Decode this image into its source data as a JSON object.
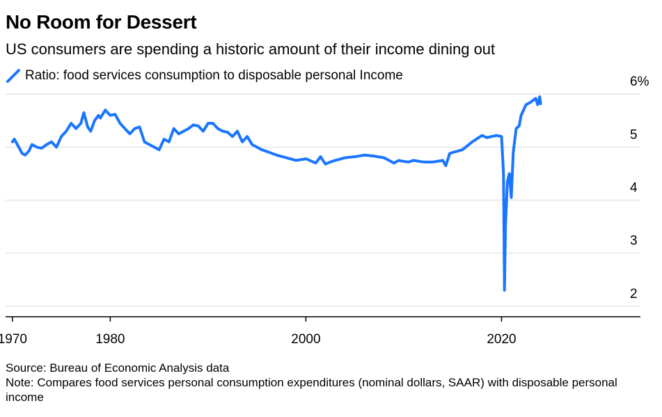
{
  "header": {
    "title": "No Room for Dessert",
    "subtitle": "US consumers are spending a historic amount of their income dining out"
  },
  "footer": {
    "source": "Source: Bureau of Economic Analysis data",
    "note": "Note: Compares food services personal consumption expenditures (nominal dollars, SAAR) with disposable personal income"
  },
  "chart_data": {
    "type": "line",
    "title": "No Room for Dessert",
    "subtitle": "US consumers are spending a historic amount of their income dining out",
    "xlabel": "",
    "ylabel": "",
    "xlim": [
      1969.3,
      2034.2
    ],
    "ylim": [
      1.8,
      6.2
    ],
    "x_ticks": [
      1970,
      1980,
      2000,
      2020
    ],
    "x_tick_labels": [
      "1970",
      "1980",
      "2000",
      "2020"
    ],
    "y_ticks": [
      2,
      3,
      4,
      5,
      6
    ],
    "y_tick_labels": [
      "2",
      "3",
      "4",
      "5",
      "6%"
    ],
    "grid": true,
    "legend_position": "top-left",
    "series": [
      {
        "name": "Ratio: food services consumption to disposable personal Income",
        "color": "#1a75ff",
        "x": [
          1970.0,
          1970.2,
          1970.5,
          1971.0,
          1971.3,
          1971.7,
          1972.0,
          1972.5,
          1973.0,
          1973.5,
          1974.0,
          1974.5,
          1975.0,
          1975.5,
          1976.0,
          1976.5,
          1977.0,
          1977.3,
          1977.7,
          1978.0,
          1978.4,
          1978.8,
          1979.0,
          1979.5,
          1980.0,
          1980.5,
          1981.0,
          1981.5,
          1982.0,
          1982.5,
          1983.0,
          1983.5,
          1984.0,
          1984.5,
          1985.0,
          1985.5,
          1986.0,
          1986.5,
          1987.0,
          1987.5,
          1988.0,
          1988.5,
          1989.0,
          1989.5,
          1990.0,
          1990.5,
          1991.0,
          1991.5,
          1992.0,
          1992.5,
          1993.0,
          1993.5,
          1994.0,
          1994.5,
          1995.0,
          1995.5,
          1996.0,
          1997.0,
          1998.0,
          1999.0,
          2000.0,
          2001.0,
          2001.5,
          2002.0,
          2002.5,
          2003.0,
          2004.0,
          2005.0,
          2006.0,
          2007.0,
          2008.0,
          2009.0,
          2009.5,
          2010.0,
          2010.5,
          2011.0,
          2012.0,
          2013.0,
          2014.0,
          2014.3,
          2014.7,
          2015.0,
          2016.0,
          2017.0,
          2018.0,
          2018.5,
          2019.0,
          2019.5,
          2020.0,
          2020.2,
          2020.3,
          2020.4,
          2020.6,
          2020.8,
          2021.0,
          2021.2,
          2021.5,
          2021.8,
          2022.0,
          2022.5,
          2023.0,
          2023.5,
          2023.7,
          2023.9,
          2024.0
        ],
        "values": [
          5.1,
          5.15,
          5.05,
          4.88,
          4.85,
          4.93,
          5.05,
          5.0,
          4.98,
          5.05,
          5.1,
          5.0,
          5.2,
          5.3,
          5.45,
          5.35,
          5.45,
          5.65,
          5.38,
          5.3,
          5.5,
          5.6,
          5.55,
          5.7,
          5.6,
          5.62,
          5.45,
          5.35,
          5.25,
          5.35,
          5.38,
          5.1,
          5.05,
          5.0,
          4.95,
          5.15,
          5.1,
          5.35,
          5.25,
          5.3,
          5.35,
          5.42,
          5.4,
          5.3,
          5.45,
          5.45,
          5.35,
          5.3,
          5.28,
          5.2,
          5.3,
          5.1,
          5.2,
          5.05,
          5.0,
          4.95,
          4.92,
          4.85,
          4.8,
          4.75,
          4.78,
          4.7,
          4.82,
          4.68,
          4.72,
          4.75,
          4.8,
          4.82,
          4.85,
          4.83,
          4.8,
          4.7,
          4.75,
          4.73,
          4.72,
          4.75,
          4.72,
          4.72,
          4.75,
          4.65,
          4.88,
          4.9,
          4.95,
          5.1,
          5.22,
          5.18,
          5.2,
          5.22,
          5.2,
          4.5,
          2.3,
          3.5,
          4.35,
          4.5,
          4.05,
          4.9,
          5.35,
          5.4,
          5.6,
          5.8,
          5.85,
          5.92,
          5.8,
          5.95,
          5.82
        ]
      }
    ]
  }
}
